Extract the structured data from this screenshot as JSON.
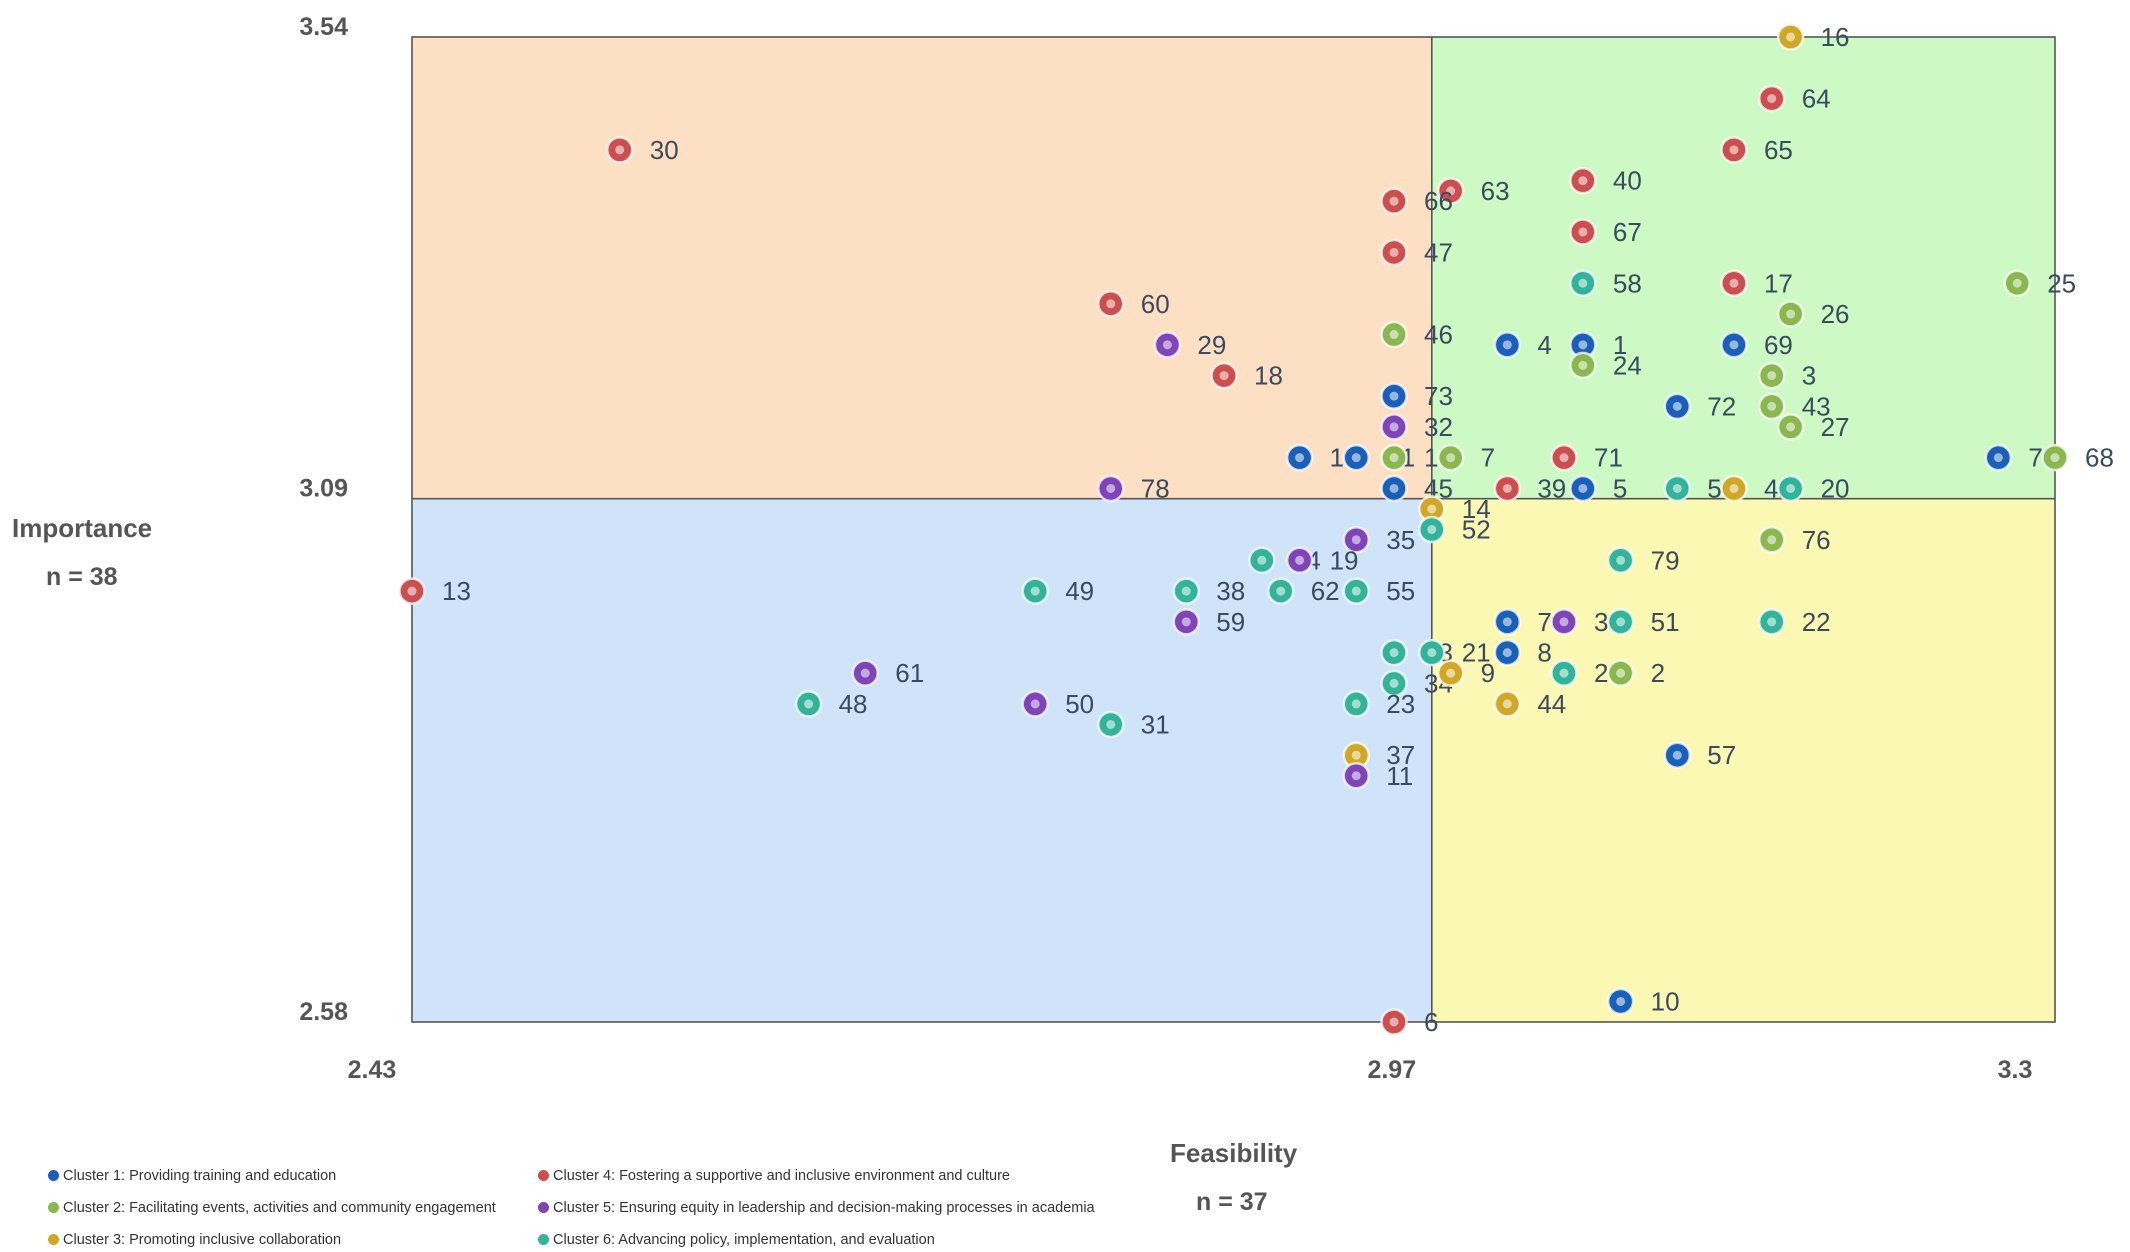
{
  "chart_data": {
    "type": "scatter",
    "title": "",
    "xlabel": "Feasibility",
    "x_n": "n = 37",
    "ylabel": "Importance",
    "y_n": "n = 38",
    "xlim": [
      2.43,
      3.3
    ],
    "ylim": [
      2.58,
      3.54
    ],
    "x_ticks": [
      "2.43",
      "2.97",
      "3.3"
    ],
    "y_ticks": [
      "3.54",
      "3.09",
      "2.58"
    ],
    "x_mean": 2.97,
    "y_mean": 3.09,
    "quadrant_colors": {
      "upper_left": "#fde0c4",
      "upper_right": "#ccf9c4",
      "lower_left": "#cfe3f9",
      "lower_right": "#fbf8b4"
    },
    "clusters": [
      {
        "id": 1,
        "name": "Cluster 1: Providing training and education",
        "color": "#1a5fb8"
      },
      {
        "id": 2,
        "name": "Cluster 2: Facilitating events, activities and community engagement",
        "color": "#8ab84f"
      },
      {
        "id": 3,
        "name": "Cluster 3: Promoting inclusive collaboration",
        "color": "#d0a826"
      },
      {
        "id": 4,
        "name": "Cluster 4: Fostering a supportive and inclusive environment and culture",
        "color": "#cc4f4f"
      },
      {
        "id": 5,
        "name": "Cluster 5: Ensuring equity in leadership and decision-making processes in academia",
        "color": "#7e44b8"
      },
      {
        "id": 6,
        "name": "Cluster 6: Advancing policy, implementation, and evaluation",
        "color": "#33b39a"
      }
    ],
    "points": [
      {
        "label": "16",
        "x": 3.16,
        "y": 3.54,
        "cluster": 3
      },
      {
        "label": "64",
        "x": 3.15,
        "y": 3.48,
        "cluster": 4
      },
      {
        "label": "30",
        "x": 2.54,
        "y": 3.43,
        "cluster": 4
      },
      {
        "label": "65",
        "x": 3.13,
        "y": 3.43,
        "cluster": 4
      },
      {
        "label": "40",
        "x": 3.05,
        "y": 3.4,
        "cluster": 4
      },
      {
        "label": "63",
        "x": 2.98,
        "y": 3.39,
        "cluster": 4
      },
      {
        "label": "66",
        "x": 2.95,
        "y": 3.38,
        "cluster": 4
      },
      {
        "label": "67",
        "x": 3.05,
        "y": 3.35,
        "cluster": 4
      },
      {
        "label": "47",
        "x": 2.95,
        "y": 3.33,
        "cluster": 4
      },
      {
        "label": "58",
        "x": 3.05,
        "y": 3.3,
        "cluster": 6
      },
      {
        "label": "17",
        "x": 3.13,
        "y": 3.3,
        "cluster": 4
      },
      {
        "label": "25",
        "x": 3.28,
        "y": 3.3,
        "cluster": 2
      },
      {
        "label": "60",
        "x": 2.8,
        "y": 3.28,
        "cluster": 4
      },
      {
        "label": "26",
        "x": 3.16,
        "y": 3.27,
        "cluster": 2
      },
      {
        "label": "29",
        "x": 2.83,
        "y": 3.24,
        "cluster": 5
      },
      {
        "label": "46",
        "x": 2.95,
        "y": 3.25,
        "cluster": 2
      },
      {
        "label": "4",
        "x": 3.01,
        "y": 3.24,
        "cluster": 1
      },
      {
        "label": "1",
        "x": 3.05,
        "y": 3.24,
        "cluster": 1
      },
      {
        "label": "69",
        "x": 3.13,
        "y": 3.24,
        "cluster": 1
      },
      {
        "label": "24",
        "x": 3.05,
        "y": 3.22,
        "cluster": 2
      },
      {
        "label": "18",
        "x": 2.86,
        "y": 3.21,
        "cluster": 4
      },
      {
        "label": "3",
        "x": 3.15,
        "y": 3.21,
        "cluster": 2
      },
      {
        "label": "73",
        "x": 2.95,
        "y": 3.19,
        "cluster": 1
      },
      {
        "label": "72",
        "x": 3.1,
        "y": 3.18,
        "cluster": 1
      },
      {
        "label": "43",
        "x": 3.15,
        "y": 3.18,
        "cluster": 2
      },
      {
        "label": "32",
        "x": 2.95,
        "y": 3.16,
        "cluster": 5
      },
      {
        "label": "27",
        "x": 3.16,
        "y": 3.16,
        "cluster": 2
      },
      {
        "label": "19",
        "x": 2.9,
        "y": 3.13,
        "cluster": 1
      },
      {
        "label": "41",
        "x": 2.93,
        "y": 3.13,
        "cluster": 1
      },
      {
        "label": "15",
        "x": 2.95,
        "y": 3.13,
        "cluster": 2
      },
      {
        "label": "7",
        "x": 2.98,
        "y": 3.13,
        "cluster": 2
      },
      {
        "label": "71",
        "x": 3.04,
        "y": 3.13,
        "cluster": 4
      },
      {
        "label": "75",
        "x": 3.27,
        "y": 3.13,
        "cluster": 1
      },
      {
        "label": "68",
        "x": 3.3,
        "y": 3.13,
        "cluster": 2
      },
      {
        "label": "78",
        "x": 2.8,
        "y": 3.1,
        "cluster": 5
      },
      {
        "label": "45",
        "x": 2.95,
        "y": 3.1,
        "cluster": 1
      },
      {
        "label": "39",
        "x": 3.01,
        "y": 3.1,
        "cluster": 4
      },
      {
        "label": "5",
        "x": 3.05,
        "y": 3.1,
        "cluster": 1
      },
      {
        "label": "56",
        "x": 3.1,
        "y": 3.1,
        "cluster": 6
      },
      {
        "label": "42",
        "x": 3.13,
        "y": 3.1,
        "cluster": 3
      },
      {
        "label": "20",
        "x": 3.16,
        "y": 3.1,
        "cluster": 6
      },
      {
        "label": "14",
        "x": 2.97,
        "y": 3.08,
        "cluster": 3
      },
      {
        "label": "35",
        "x": 2.93,
        "y": 3.05,
        "cluster": 5
      },
      {
        "label": "52",
        "x": 2.97,
        "y": 3.06,
        "cluster": 6
      },
      {
        "label": "76",
        "x": 3.15,
        "y": 3.05,
        "cluster": 2
      },
      {
        "label": "54",
        "x": 2.88,
        "y": 3.03,
        "cluster": 6
      },
      {
        "label": "19",
        "x": 2.9,
        "y": 3.03,
        "cluster": 5
      },
      {
        "label": "79",
        "x": 3.07,
        "y": 3.03,
        "cluster": 6
      },
      {
        "label": "13",
        "x": 2.43,
        "y": 3.0,
        "cluster": 4
      },
      {
        "label": "49",
        "x": 2.76,
        "y": 3.0,
        "cluster": 6
      },
      {
        "label": "38",
        "x": 2.84,
        "y": 3.0,
        "cluster": 6
      },
      {
        "label": "62",
        "x": 2.89,
        "y": 3.0,
        "cluster": 6
      },
      {
        "label": "55",
        "x": 2.93,
        "y": 3.0,
        "cluster": 6
      },
      {
        "label": "59",
        "x": 2.84,
        "y": 2.97,
        "cluster": 5
      },
      {
        "label": "74",
        "x": 3.01,
        "y": 2.97,
        "cluster": 1
      },
      {
        "label": "33",
        "x": 3.04,
        "y": 2.97,
        "cluster": 5
      },
      {
        "label": "51",
        "x": 3.07,
        "y": 2.97,
        "cluster": 6
      },
      {
        "label": "22",
        "x": 3.15,
        "y": 2.97,
        "cluster": 6
      },
      {
        "label": "53",
        "x": 2.95,
        "y": 2.94,
        "cluster": 6
      },
      {
        "label": "21",
        "x": 2.97,
        "y": 2.94,
        "cluster": 6
      },
      {
        "label": "8",
        "x": 3.01,
        "y": 2.94,
        "cluster": 1
      },
      {
        "label": "61",
        "x": 2.67,
        "y": 2.92,
        "cluster": 5
      },
      {
        "label": "34",
        "x": 2.95,
        "y": 2.91,
        "cluster": 6
      },
      {
        "label": "9",
        "x": 2.98,
        "y": 2.92,
        "cluster": 3
      },
      {
        "label": "28",
        "x": 3.04,
        "y": 2.92,
        "cluster": 6
      },
      {
        "label": "2",
        "x": 3.07,
        "y": 2.92,
        "cluster": 2
      },
      {
        "label": "48",
        "x": 2.64,
        "y": 2.89,
        "cluster": 6
      },
      {
        "label": "50",
        "x": 2.76,
        "y": 2.89,
        "cluster": 5
      },
      {
        "label": "23",
        "x": 2.93,
        "y": 2.89,
        "cluster": 6
      },
      {
        "label": "44",
        "x": 3.01,
        "y": 2.89,
        "cluster": 3
      },
      {
        "label": "31",
        "x": 2.8,
        "y": 2.87,
        "cluster": 6
      },
      {
        "label": "37",
        "x": 2.93,
        "y": 2.84,
        "cluster": 3
      },
      {
        "label": "57",
        "x": 3.1,
        "y": 2.84,
        "cluster": 1
      },
      {
        "label": "11",
        "x": 2.93,
        "y": 2.82,
        "cluster": 5
      },
      {
        "label": "10",
        "x": 3.07,
        "y": 2.6,
        "cluster": 1
      },
      {
        "label": "6",
        "x": 2.95,
        "y": 2.58,
        "cluster": 4
      }
    ]
  }
}
